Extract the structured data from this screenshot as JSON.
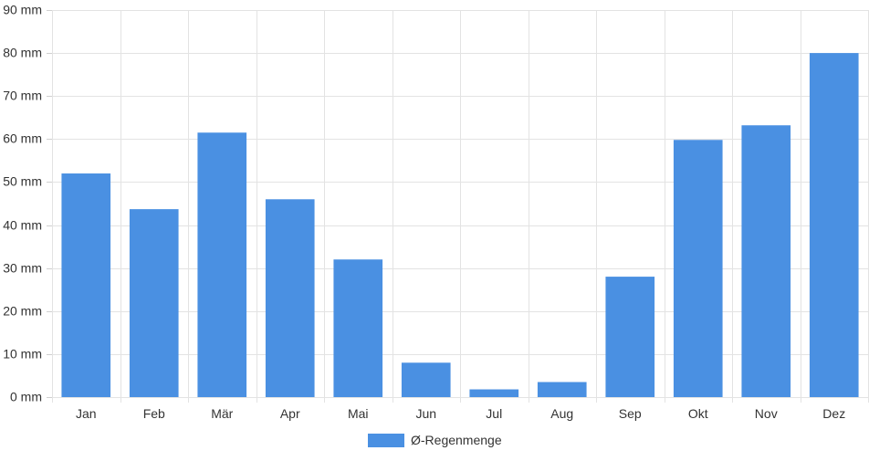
{
  "chart_data": {
    "type": "bar",
    "categories": [
      "Jan",
      "Feb",
      "Mär",
      "Apr",
      "Mai",
      "Jun",
      "Jul",
      "Aug",
      "Sep",
      "Okt",
      "Nov",
      "Dez"
    ],
    "series": [
      {
        "name": "Ø-Regenmenge",
        "color": "#4a90e2",
        "values": [
          52,
          43.7,
          61.5,
          46,
          32,
          8,
          1.8,
          3.5,
          28,
          59.8,
          63.2,
          80
        ]
      }
    ],
    "y_unit": "mm",
    "ylim": [
      0,
      90
    ],
    "yticks": [
      0,
      10,
      20,
      30,
      40,
      50,
      60,
      70,
      80,
      90
    ],
    "ytick_labels": [
      "0 mm",
      "10 mm",
      "20 mm",
      "30 mm",
      "40 mm",
      "50 mm",
      "60 mm",
      "70 mm",
      "80 mm",
      "90 mm"
    ],
    "grid": true,
    "legend_position": "bottom"
  }
}
